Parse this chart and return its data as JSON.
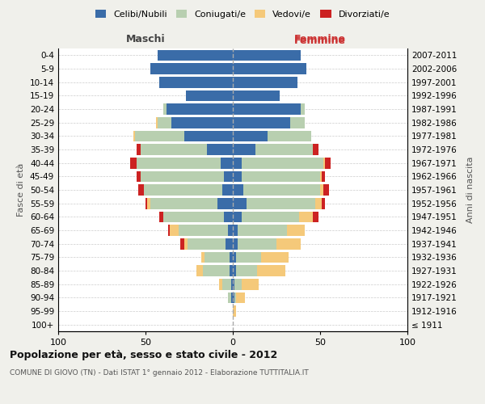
{
  "age_groups": [
    "100+",
    "95-99",
    "90-94",
    "85-89",
    "80-84",
    "75-79",
    "70-74",
    "65-69",
    "60-64",
    "55-59",
    "50-54",
    "45-49",
    "40-44",
    "35-39",
    "30-34",
    "25-29",
    "20-24",
    "15-19",
    "10-14",
    "5-9",
    "0-4"
  ],
  "birth_years": [
    "≤ 1911",
    "1912-1916",
    "1917-1921",
    "1922-1926",
    "1927-1931",
    "1932-1936",
    "1937-1941",
    "1942-1946",
    "1947-1951",
    "1952-1956",
    "1957-1961",
    "1962-1966",
    "1967-1971",
    "1972-1976",
    "1977-1981",
    "1982-1986",
    "1987-1991",
    "1992-1996",
    "1997-2001",
    "2002-2006",
    "2007-2011"
  ],
  "male": {
    "celibi": [
      0,
      0,
      1,
      1,
      2,
      2,
      4,
      3,
      5,
      9,
      6,
      5,
      7,
      15,
      28,
      35,
      38,
      27,
      42,
      47,
      43
    ],
    "coniugati": [
      0,
      0,
      2,
      5,
      15,
      14,
      22,
      28,
      35,
      38,
      45,
      48,
      48,
      38,
      28,
      8,
      2,
      0,
      0,
      0,
      0
    ],
    "vedovi": [
      0,
      0,
      0,
      2,
      4,
      2,
      2,
      5,
      0,
      2,
      0,
      0,
      0,
      0,
      1,
      1,
      0,
      0,
      0,
      0,
      0
    ],
    "divorziati": [
      0,
      0,
      0,
      0,
      0,
      0,
      2,
      1,
      2,
      1,
      3,
      2,
      4,
      2,
      0,
      0,
      0,
      0,
      0,
      0,
      0
    ]
  },
  "female": {
    "nubili": [
      0,
      0,
      1,
      1,
      2,
      2,
      3,
      3,
      5,
      8,
      6,
      5,
      5,
      13,
      20,
      33,
      39,
      27,
      37,
      42,
      39
    ],
    "coniugate": [
      0,
      0,
      1,
      4,
      12,
      14,
      22,
      28,
      33,
      39,
      44,
      45,
      47,
      33,
      25,
      8,
      2,
      0,
      0,
      0,
      0
    ],
    "vedove": [
      0,
      2,
      5,
      10,
      16,
      16,
      14,
      10,
      8,
      4,
      2,
      1,
      1,
      0,
      0,
      0,
      0,
      0,
      0,
      0,
      0
    ],
    "divorziate": [
      0,
      0,
      0,
      0,
      0,
      0,
      0,
      0,
      3,
      2,
      3,
      2,
      3,
      3,
      0,
      0,
      0,
      0,
      0,
      0,
      0
    ]
  },
  "colors": {
    "celibi": "#3a6ca8",
    "coniugati": "#b8cfb0",
    "vedovi": "#f5c97a",
    "divorziati": "#cc2222"
  },
  "title1": "Popolazione per età, sesso e stato civile - 2012",
  "title2": "COMUNE DI GIOVO (TN) - Dati ISTAT 1° gennaio 2012 - Elaborazione TUTTITALIA.IT",
  "xlabel_left": "Maschi",
  "xlabel_right": "Femmine",
  "ylabel_left": "Fasce di età",
  "ylabel_right": "Anni di nascita",
  "xlim": 100,
  "background": "#f0f0eb",
  "plot_background": "#ffffff",
  "legend_labels": [
    "Celibi/Nubili",
    "Coniugati/e",
    "Vedovi/e",
    "Divorziati/e"
  ]
}
